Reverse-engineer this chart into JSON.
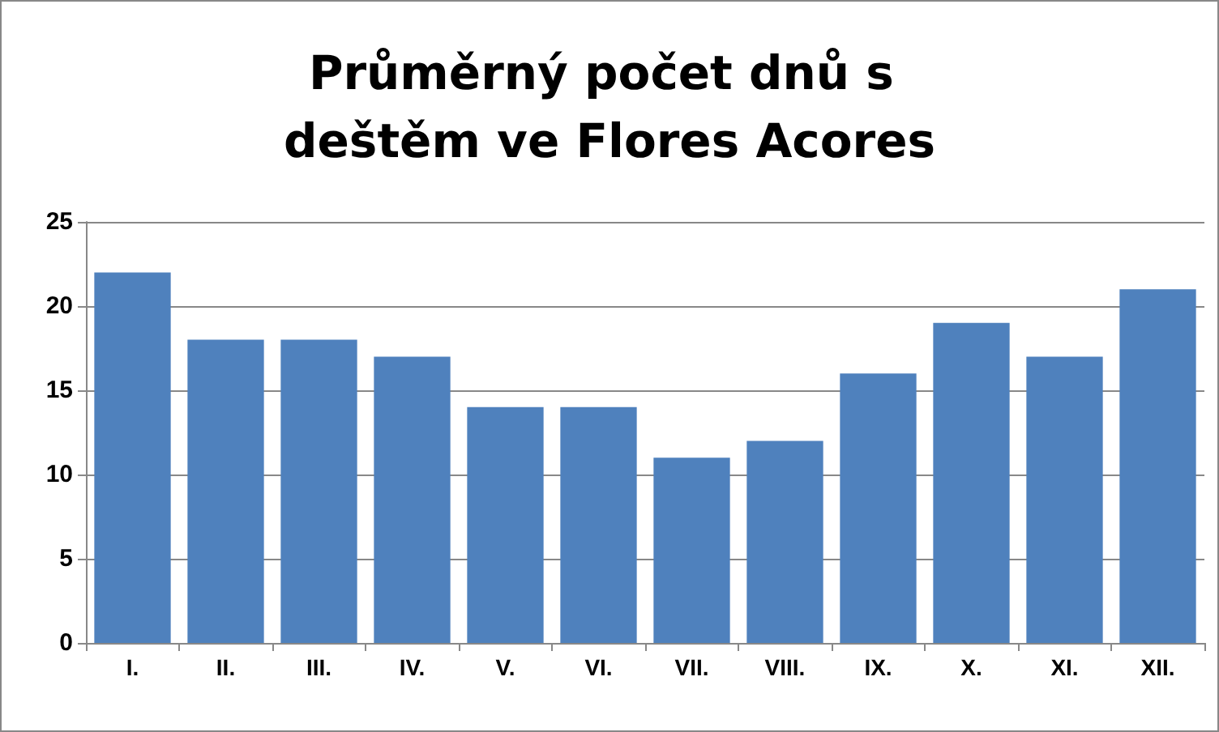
{
  "chart_data": {
    "type": "bar",
    "title": "Průměrný počet dnů s deštěm ve Flores Acores",
    "categories": [
      "I.",
      "II.",
      "III.",
      "IV.",
      "V.",
      "VI.",
      "VII.",
      "VIII.",
      "IX.",
      "X.",
      "XI.",
      "XII."
    ],
    "values": [
      22,
      18,
      18,
      17,
      14,
      14,
      11,
      12,
      16,
      19,
      17,
      21
    ],
    "color": "#4f81bd",
    "ylim": [
      0,
      25
    ],
    "yticks": [
      0,
      5,
      10,
      15,
      20,
      25
    ],
    "grid": "y"
  }
}
